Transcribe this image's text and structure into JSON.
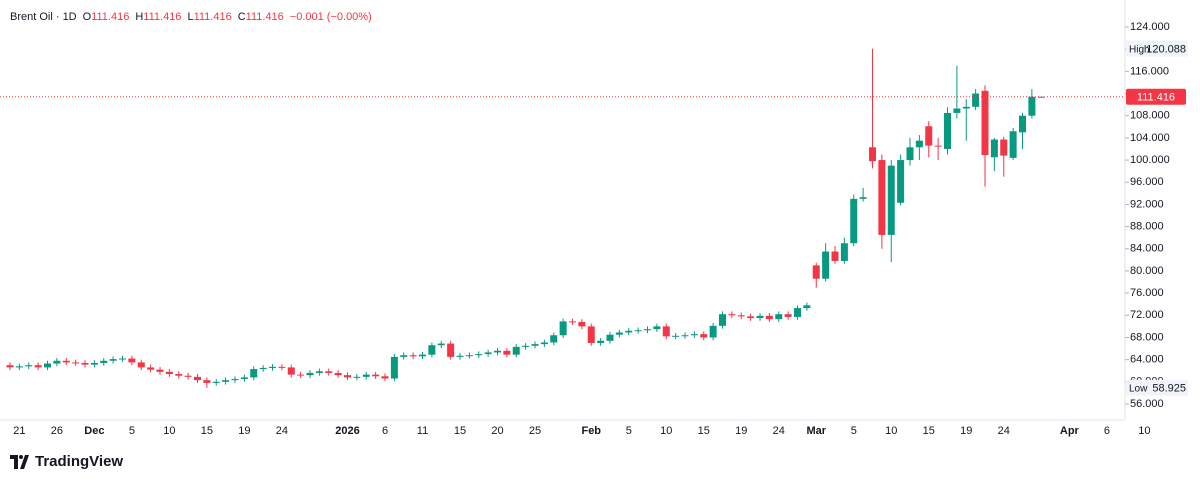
{
  "chart_data": {
    "type": "candlestick",
    "header": {
      "symbol": "Brent Oil · 1D",
      "o": "O",
      "h": "H",
      "l": "L",
      "c": "C",
      "change": "−0.001 (−0.00%)"
    },
    "brand": "TradingView",
    "high_label": "High",
    "low_label": "Low",
    "high_index": 92,
    "low_index": 21,
    "up_color": "#089981",
    "down_color": "#f23645",
    "grid": false,
    "ylim": [
      53.114,
      128.87
    ],
    "yticks": [
      {
        "value": 56,
        "label": "56.000"
      },
      {
        "value": 60,
        "label": "60.000"
      },
      {
        "value": 64,
        "label": "64.000"
      },
      {
        "value": 68,
        "label": "68.000"
      },
      {
        "value": 72,
        "label": "72.000"
      },
      {
        "value": 76,
        "label": "76.000"
      },
      {
        "value": 80,
        "label": "80.000"
      },
      {
        "value": 84,
        "label": "84.000"
      },
      {
        "value": 88,
        "label": "88.000"
      },
      {
        "value": 92,
        "label": "92.000"
      },
      {
        "value": 96,
        "label": "96.000"
      },
      {
        "value": 100,
        "label": "100.000"
      },
      {
        "value": 104,
        "label": "104.000"
      },
      {
        "value": 108,
        "label": "108.000"
      },
      {
        "value": 112,
        "label": "112.000"
      },
      {
        "value": 116,
        "label": "116.000"
      },
      {
        "value": 120,
        "label": "120.000"
      },
      {
        "value": 124,
        "label": "124.000"
      }
    ],
    "categories": [
      null,
      "21",
      null,
      null,
      null,
      "26",
      null,
      null,
      null,
      "Dec",
      null,
      null,
      null,
      "5",
      null,
      null,
      null,
      "10",
      null,
      null,
      null,
      "15",
      null,
      null,
      null,
      "19",
      null,
      null,
      null,
      "24",
      null,
      null,
      null,
      null,
      null,
      null,
      "2026",
      null,
      null,
      null,
      "6",
      null,
      null,
      null,
      "11",
      null,
      null,
      null,
      "15",
      null,
      null,
      null,
      "20",
      null,
      null,
      null,
      "25",
      null,
      null,
      null,
      null,
      null,
      "Feb",
      null,
      null,
      null,
      "5",
      null,
      null,
      null,
      "10",
      null,
      null,
      null,
      "15",
      null,
      null,
      null,
      "19",
      null,
      null,
      null,
      "24",
      null,
      null,
      null,
      "Mar",
      null,
      null,
      null,
      "5",
      null,
      null,
      null,
      "10",
      null,
      null,
      null,
      "15",
      null,
      null,
      null,
      "19",
      null,
      null,
      null,
      "24",
      null,
      null,
      null,
      null,
      null,
      null,
      "Apr",
      null,
      null,
      null,
      "6",
      null,
      null,
      null,
      "10"
    ],
    "open": [
      63.0,
      62.6,
      62.8,
      63.0,
      62.6,
      63.3,
      63.8,
      63.5,
      63.4,
      63.1,
      63.4,
      63.8,
      64.1,
      64.2,
      63.5,
      62.6,
      62.2,
      61.8,
      61.4,
      61.1,
      60.9,
      60.3,
      59.8,
      60.0,
      60.3,
      60.5,
      60.8,
      62.3,
      62.5,
      62.7,
      62.6,
      61.3,
      61.2,
      61.6,
      61.9,
      61.6,
      61.2,
      60.8,
      60.9,
      61.3,
      61.0,
      60.6,
      64.5,
      64.8,
      64.6,
      64.9,
      66.6,
      66.9,
      64.5,
      64.7,
      64.8,
      65.0,
      65.3,
      65.6,
      64.9,
      66.3,
      66.5,
      66.8,
      67.1,
      68.4,
      70.9,
      70.8,
      70.0,
      67.0,
      67.4,
      68.5,
      68.9,
      69.2,
      69.3,
      69.5,
      70.0,
      68.2,
      68.3,
      68.4,
      68.6,
      68.0,
      70.1,
      72.2,
      72.0,
      71.8,
      71.5,
      71.9,
      71.3,
      72.2,
      71.7,
      73.3,
      81.0,
      78.6,
      83.5,
      81.8,
      85.0,
      93.0,
      102.3,
      100.0,
      86.5,
      92.3,
      100.0,
      102.3,
      106.1,
      102.6,
      102.0,
      108.5,
      109.3,
      109.6,
      112.5,
      100.5,
      103.7,
      100.4,
      105.0,
      108.0,
      111.416,
      null,
      null,
      null,
      null,
      null,
      null,
      null,
      null,
      null,
      null,
      null
    ],
    "high": [
      63.5,
      63.3,
      63.5,
      63.5,
      63.8,
      64.3,
      64.3,
      64.0,
      63.9,
      63.9,
      64.3,
      64.6,
      64.7,
      64.7,
      64.0,
      63.1,
      62.7,
      62.3,
      61.9,
      61.6,
      61.4,
      60.8,
      60.5,
      60.8,
      61.0,
      61.3,
      62.8,
      63.0,
      63.2,
      63.2,
      63.1,
      61.8,
      62.1,
      62.4,
      62.4,
      62.1,
      61.7,
      61.4,
      61.8,
      61.8,
      61.5,
      65.0,
      65.3,
      65.3,
      65.4,
      67.1,
      67.4,
      67.4,
      65.2,
      65.3,
      65.5,
      65.8,
      66.1,
      66.1,
      66.8,
      67.0,
      67.3,
      67.6,
      68.9,
      71.4,
      71.4,
      71.3,
      70.5,
      67.9,
      69.0,
      69.4,
      69.7,
      69.8,
      70.0,
      70.5,
      70.5,
      68.8,
      68.9,
      69.1,
      69.1,
      70.6,
      72.7,
      72.7,
      72.5,
      72.3,
      72.4,
      72.4,
      72.7,
      72.7,
      73.8,
      74.3,
      81.5,
      85.0,
      84.5,
      86.0,
      93.8,
      95.0,
      120.088,
      101.0,
      100.0,
      101.0,
      104.0,
      104.5,
      107.0,
      104.0,
      109.5,
      117.0,
      111.0,
      112.8,
      113.5,
      104.0,
      104.2,
      105.8,
      108.5,
      112.8,
      111.416,
      null,
      null,
      null,
      null,
      null,
      null,
      null,
      null,
      null,
      null,
      null
    ],
    "low": [
      62.1,
      62.1,
      62.3,
      62.1,
      62.1,
      62.8,
      63.0,
      62.9,
      62.6,
      62.6,
      62.9,
      63.3,
      63.6,
      63.0,
      62.1,
      61.7,
      61.3,
      60.9,
      60.6,
      60.4,
      59.8,
      58.925,
      59.3,
      59.5,
      59.8,
      60.0,
      60.3,
      61.8,
      62.0,
      62.1,
      60.8,
      60.7,
      60.7,
      61.1,
      61.1,
      60.7,
      60.3,
      60.3,
      60.4,
      60.5,
      60.1,
      60.1,
      64.0,
      64.1,
      64.1,
      64.4,
      66.1,
      64.0,
      64.0,
      64.2,
      64.3,
      64.5,
      64.8,
      64.4,
      64.4,
      65.8,
      66.0,
      66.3,
      66.6,
      67.9,
      70.3,
      69.5,
      66.5,
      66.5,
      66.9,
      68.0,
      68.4,
      68.7,
      68.8,
      69.0,
      67.7,
      67.7,
      67.8,
      67.9,
      67.5,
      67.5,
      69.6,
      71.5,
      71.3,
      71.0,
      71.0,
      70.8,
      70.8,
      71.2,
      71.2,
      72.8,
      77.0,
      78.1,
      81.3,
      81.3,
      84.5,
      92.5,
      98.5,
      84.0,
      81.6,
      91.8,
      99.0,
      100.0,
      100.5,
      100.0,
      101.0,
      107.5,
      103.5,
      109.0,
      95.2,
      98.0,
      97.0,
      100.0,
      102.0,
      107.5,
      111.416,
      null,
      null,
      null,
      null,
      null,
      null,
      null,
      null,
      null,
      null,
      null
    ],
    "close": [
      62.6,
      62.8,
      63.0,
      62.6,
      63.3,
      63.8,
      63.5,
      63.4,
      63.1,
      63.4,
      63.8,
      64.1,
      64.2,
      63.5,
      62.6,
      62.2,
      61.8,
      61.4,
      61.1,
      60.9,
      60.3,
      59.8,
      60.0,
      60.3,
      60.5,
      60.8,
      62.3,
      62.5,
      62.7,
      62.6,
      61.3,
      61.2,
      61.6,
      61.9,
      61.6,
      61.2,
      60.8,
      60.9,
      61.3,
      61.0,
      60.6,
      64.5,
      64.8,
      64.6,
      64.9,
      66.6,
      66.9,
      64.5,
      64.7,
      64.8,
      65.0,
      65.3,
      65.6,
      64.9,
      66.3,
      66.5,
      66.8,
      67.1,
      68.4,
      70.9,
      70.8,
      70.0,
      67.0,
      67.4,
      68.5,
      68.9,
      69.2,
      69.3,
      69.5,
      70.0,
      68.2,
      68.3,
      68.4,
      68.6,
      68.0,
      70.1,
      72.2,
      72.0,
      71.8,
      71.5,
      71.9,
      71.3,
      72.2,
      71.7,
      73.3,
      73.8,
      78.6,
      83.5,
      81.8,
      85.0,
      93.0,
      93.3,
      99.8,
      86.5,
      99.0,
      100.0,
      102.3,
      103.5,
      102.6,
      102.5,
      108.5,
      109.3,
      109.6,
      112.0,
      100.9,
      103.7,
      100.8,
      105.2,
      108.0,
      111.417,
      111.416,
      null,
      null,
      null,
      null,
      null,
      null,
      null,
      null,
      null,
      null,
      null
    ]
  }
}
